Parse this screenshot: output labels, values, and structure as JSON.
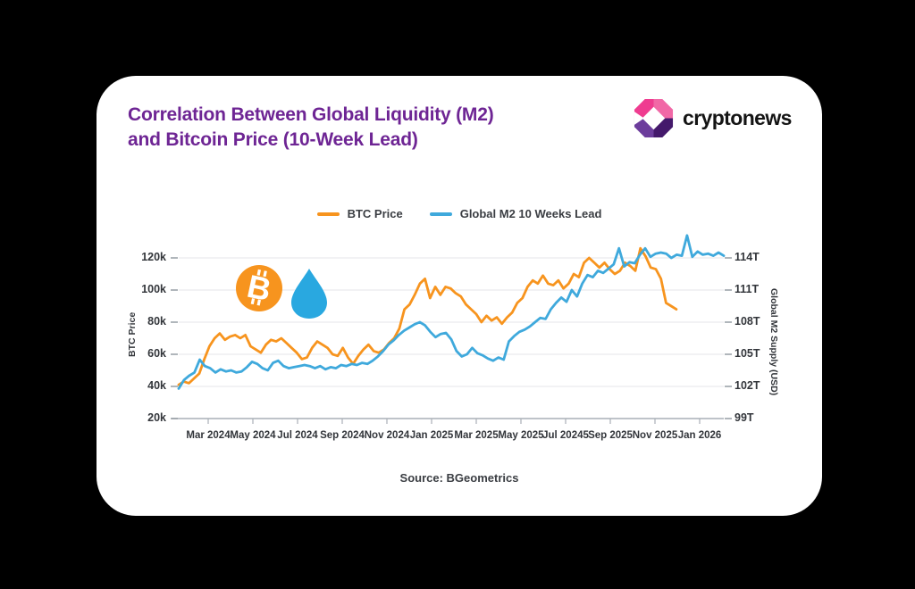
{
  "page": {
    "background": "#000000",
    "card_background": "#FFFFFF"
  },
  "header": {
    "title_line1": "Correlation Between Global Liquidity (M2)",
    "title_line2": "and Bitcoin Price (10-Week Lead)",
    "title_color": "#6E2594",
    "brand": "cryptonews"
  },
  "legend": {
    "items": [
      {
        "label": "BTC Price",
        "color": "#F7941E"
      },
      {
        "label": "Global M2 10 Weeks Lead",
        "color": "#3FA9DC"
      }
    ]
  },
  "footer": {
    "source": "Source: BGeometrics"
  },
  "icons": {
    "bitcoin_coin": {
      "color": "#F7941E",
      "symbol_color": "#FFFFFF"
    },
    "liquidity_droplet": {
      "color": "#29A8E0"
    },
    "brand_logo": {
      "colors": [
        "#EF3C90",
        "#F168A6",
        "#6C3D9C",
        "#44196B"
      ]
    }
  },
  "chart_data": {
    "type": "line",
    "title": "Correlation Between Global Liquidity (M2) and Bitcoin Price (10-Week Lead)",
    "x_interval": "weekly",
    "x_range": [
      "Jan 2024",
      "Jan 2026"
    ],
    "grid": true,
    "legend_position": "top-center",
    "x_tick_labels": [
      "Mar 2024",
      "May 2024",
      "Jul 2024",
      "Sep 2024",
      "Nov 2024",
      "Jan 2025",
      "Mar 2025",
      "May 2025",
      "Jul 20245",
      "Sep 2025",
      "Nov 2025",
      "Jan 2026"
    ],
    "left_axis": {
      "label": "BTC Price",
      "unit": "USD thousands",
      "tick_labels": [
        "120k",
        "100k",
        "80k",
        "60k",
        "40k",
        "20k"
      ],
      "tick_values": [
        120,
        100,
        80,
        60,
        40,
        20
      ],
      "range": [
        20,
        130
      ]
    },
    "right_axis": {
      "label": "Global M2 Supply (USD)",
      "unit": "USD trillions",
      "tick_labels": [
        "114T",
        "111T",
        "108T",
        "105T",
        "102T",
        "99T"
      ],
      "tick_values": [
        114,
        111,
        108,
        105,
        102,
        99
      ],
      "range": [
        99,
        116.5
      ]
    },
    "series": [
      {
        "name": "BTC Price",
        "axis": "left",
        "color": "#F7941E",
        "unit": "USD thousands",
        "end_fraction": 0.913,
        "values": [
          41,
          43,
          42,
          45,
          48,
          57,
          65,
          70,
          73,
          69,
          71,
          72,
          70,
          72,
          65,
          63,
          61,
          66,
          69,
          68,
          70,
          67,
          64,
          61,
          57,
          58,
          64,
          68,
          66,
          64,
          60,
          59,
          64,
          58,
          54,
          59,
          63,
          66,
          62,
          61,
          63,
          67,
          70,
          76,
          88,
          91,
          97,
          104,
          107,
          95,
          102,
          97,
          102,
          101,
          98,
          96,
          91,
          88,
          85,
          80,
          84,
          81,
          83,
          79,
          83,
          86,
          92,
          95,
          102,
          106,
          104,
          109,
          104,
          103,
          106,
          101,
          104,
          110,
          108,
          117,
          120,
          117,
          114,
          117,
          113,
          110,
          112,
          117,
          115,
          112,
          126,
          121,
          114,
          113,
          107,
          92,
          90,
          88
        ]
      },
      {
        "name": "Global M2 10 Weeks Lead",
        "axis": "right",
        "color": "#3FA9DC",
        "unit": "USD trillions",
        "end_fraction": 1.0,
        "values": [
          101.8,
          102.6,
          103.0,
          103.3,
          104.5,
          103.9,
          103.7,
          103.3,
          103.6,
          103.4,
          103.5,
          103.3,
          103.4,
          103.8,
          104.3,
          104.1,
          103.7,
          103.5,
          104.2,
          104.4,
          103.9,
          103.7,
          103.8,
          103.9,
          104.0,
          103.9,
          103.7,
          103.9,
          103.6,
          103.8,
          103.7,
          104.0,
          103.9,
          104.1,
          104.0,
          104.2,
          104.1,
          104.4,
          104.8,
          105.3,
          105.9,
          106.3,
          106.8,
          107.2,
          107.5,
          107.8,
          108.0,
          107.7,
          107.1,
          106.6,
          106.9,
          107.0,
          106.4,
          105.3,
          104.8,
          105.0,
          105.6,
          105.1,
          104.9,
          104.6,
          104.4,
          104.7,
          104.5,
          106.2,
          106.7,
          107.1,
          107.3,
          107.6,
          108.0,
          108.4,
          108.3,
          109.2,
          109.8,
          110.3,
          109.9,
          111.0,
          110.4,
          111.6,
          112.4,
          112.2,
          112.8,
          112.6,
          113.0,
          113.4,
          114.9,
          113.2,
          113.6,
          113.5,
          114.3,
          114.9,
          114.1,
          114.4,
          114.5,
          114.4,
          114.0,
          114.3,
          114.2,
          116.1,
          114.1,
          114.6,
          114.3,
          114.4,
          114.2,
          114.5,
          114.2
        ]
      }
    ]
  }
}
